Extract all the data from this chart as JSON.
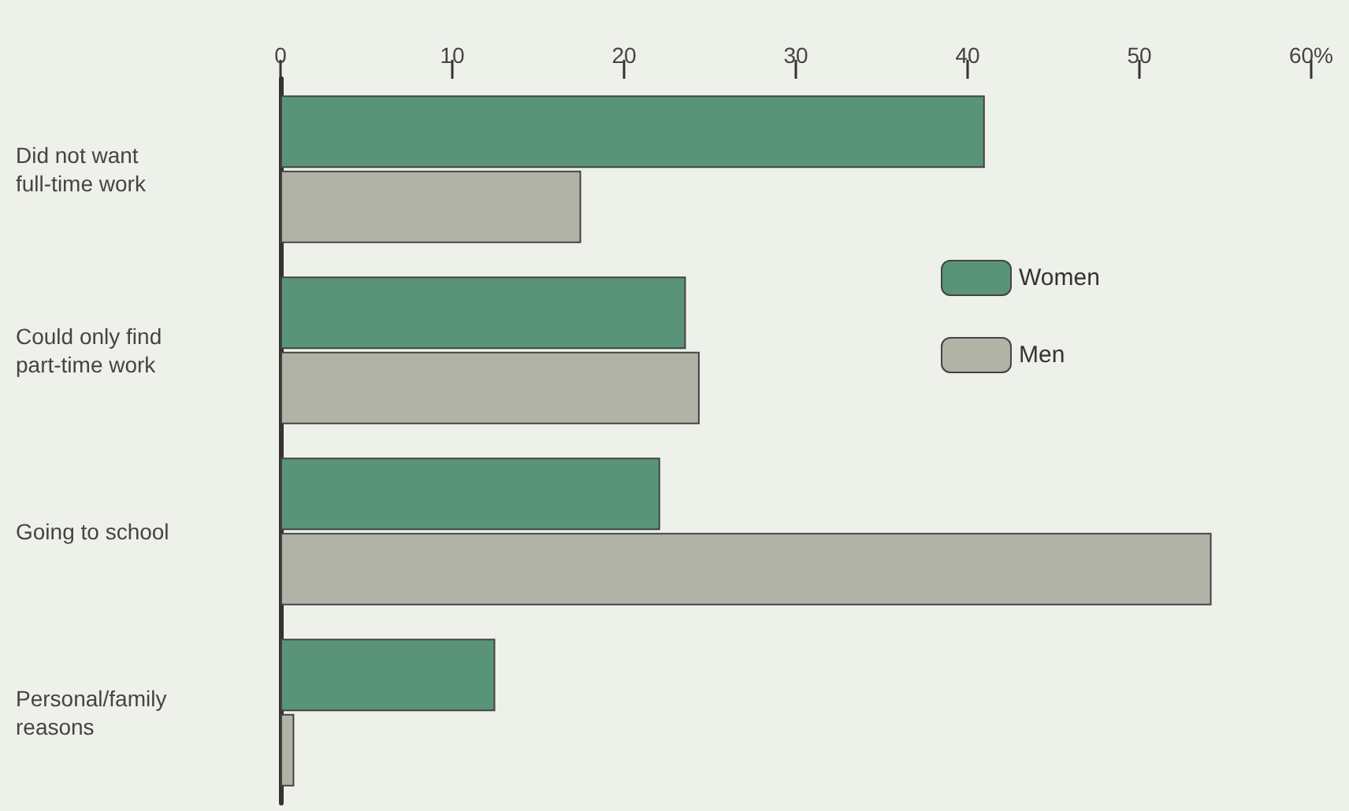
{
  "chart_data": {
    "type": "bar",
    "orientation": "horizontal",
    "categories": [
      "Did not want\nfull-time work",
      "Could only find\npart-time work",
      "Going to school",
      "Personal/family\nreasons"
    ],
    "series": [
      {
        "name": "Women",
        "color": "#5a9478",
        "values": [
          41.0,
          23.6,
          22.1,
          12.5
        ]
      },
      {
        "name": "Men",
        "color": "#b0b3a6",
        "values": [
          17.5,
          24.4,
          54.2,
          0.8
        ]
      }
    ],
    "xlim": [
      0,
      60
    ],
    "xticks": [
      0,
      10,
      20,
      30,
      40,
      50,
      {
        "value": 60,
        "label": "60%"
      }
    ],
    "grid": false,
    "legend": "right"
  }
}
